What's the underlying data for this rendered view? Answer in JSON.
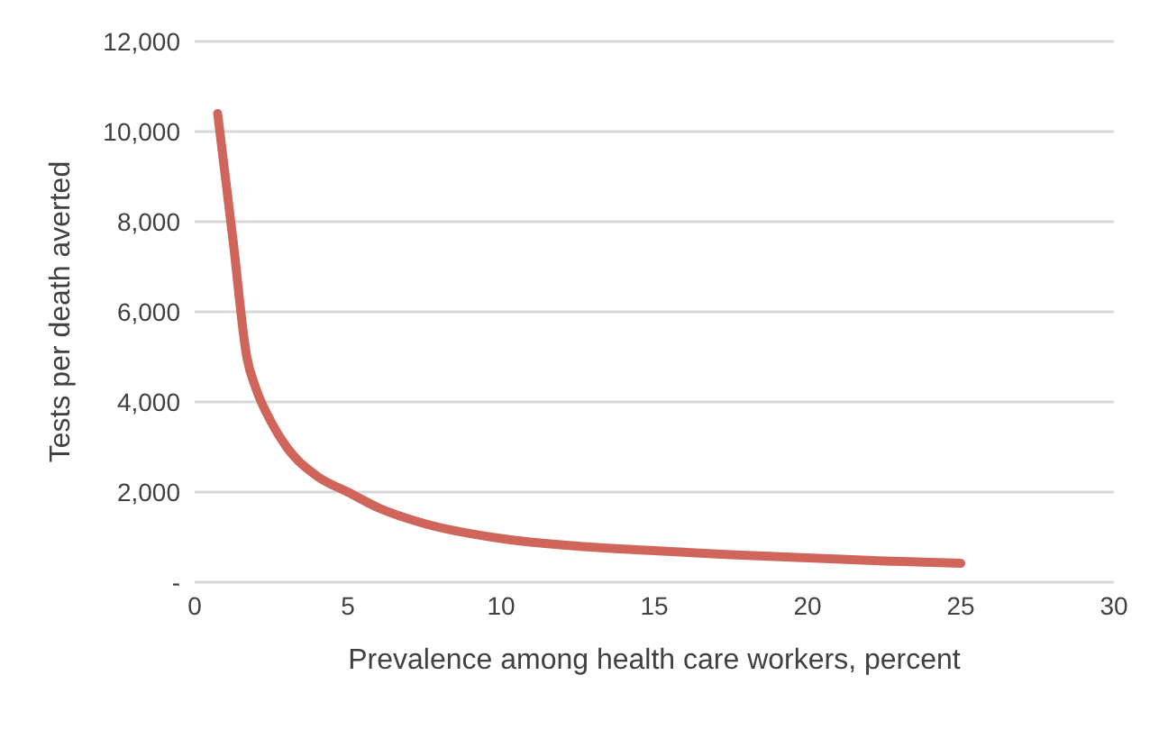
{
  "chart_data": {
    "type": "line",
    "xlabel": "Prevalence among health care workers, percent",
    "ylabel": "Tests per death averted",
    "series": [
      {
        "color": "#d0655c",
        "x": [
          0.75,
          1.25,
          1.7,
          2,
          2.5,
          3,
          4,
          5,
          6,
          7.5,
          10,
          12.5,
          15,
          17.5,
          20,
          22.5,
          25
        ],
        "values": [
          10400,
          7600,
          5000,
          4300,
          3550,
          3000,
          2350,
          2000,
          1650,
          1300,
          970,
          800,
          700,
          610,
          540,
          470,
          420
        ]
      }
    ],
    "xlim": [
      0,
      30
    ],
    "xticks": [
      0,
      5,
      10,
      15,
      20,
      25,
      30
    ],
    "ylim": [
      0,
      12000
    ],
    "yticks": [
      {
        "value": 0,
        "label": "-"
      },
      {
        "value": 2000,
        "label": "2,000"
      },
      {
        "value": 4000,
        "label": "4,000"
      },
      {
        "value": 6000,
        "label": "6,000"
      },
      {
        "value": 8000,
        "label": "8,000"
      },
      {
        "value": 10000,
        "label": "10,000"
      },
      {
        "value": 12000,
        "label": "12,000"
      }
    ],
    "grid": "y",
    "marker": "none",
    "line_style": "solid",
    "legend": false
  }
}
